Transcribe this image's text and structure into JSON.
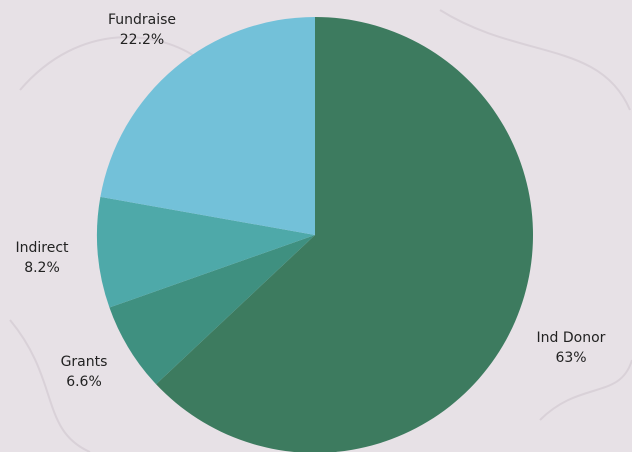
{
  "chart_data": {
    "type": "pie",
    "categories": [
      "Ind Donor",
      "Grants",
      "Indirect",
      "Fundraise"
    ],
    "values": [
      63,
      6.6,
      8.2,
      22.2
    ],
    "value_labels": [
      "63%",
      "6.6%",
      "8.2%",
      "22.2%"
    ],
    "colors": [
      "#3d7b5f",
      "#3f9080",
      "#4ea9a9",
      "#73c1d9"
    ]
  }
}
